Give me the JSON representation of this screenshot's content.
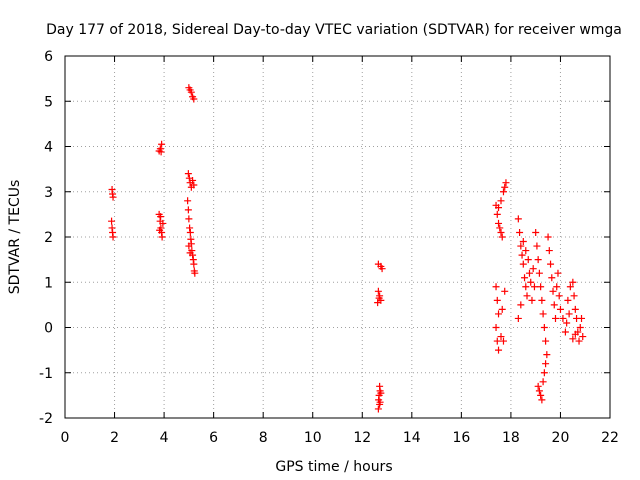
{
  "chart_data": {
    "type": "scatter",
    "title": "Day 177 of 2018, Sidereal Day-to-day VTEC variation (SDTVAR) for receiver wmga",
    "xlabel": "GPS time / hours",
    "ylabel": "SDTVAR / TECUs",
    "xlim": [
      0,
      22
    ],
    "ylim": [
      -2,
      6
    ],
    "xticks": [
      0,
      2,
      4,
      6,
      8,
      10,
      12,
      14,
      16,
      18,
      20,
      22
    ],
    "yticks": [
      -2,
      -1,
      0,
      1,
      2,
      3,
      4,
      5,
      6
    ],
    "xtick_labels": [
      "0",
      "2",
      "4",
      "6",
      "8",
      "10",
      "12",
      "14",
      "16",
      "18",
      "20",
      "22"
    ],
    "ytick_labels": [
      "-2",
      "-1",
      "0",
      "1",
      "2",
      "3",
      "4",
      "5",
      "6"
    ],
    "grid": true,
    "marker": "+",
    "marker_color": "#ff0000",
    "series": [
      {
        "name": "SDTVAR",
        "points": [
          [
            1.9,
            3.05
          ],
          [
            1.92,
            2.95
          ],
          [
            1.94,
            2.88
          ],
          [
            1.88,
            2.35
          ],
          [
            1.9,
            2.2
          ],
          [
            1.92,
            2.1
          ],
          [
            1.94,
            2.0
          ],
          [
            3.8,
            3.9
          ],
          [
            3.85,
            3.95
          ],
          [
            3.9,
            4.05
          ],
          [
            3.88,
            3.88
          ],
          [
            3.8,
            2.5
          ],
          [
            3.84,
            2.35
          ],
          [
            3.87,
            2.2
          ],
          [
            3.9,
            2.1
          ],
          [
            3.92,
            2.0
          ],
          [
            3.95,
            2.3
          ],
          [
            3.82,
            2.15
          ],
          [
            3.86,
            2.45
          ],
          [
            5.0,
            5.3
          ],
          [
            5.05,
            5.25
          ],
          [
            5.1,
            5.2
          ],
          [
            5.15,
            5.1
          ],
          [
            5.2,
            5.05
          ],
          [
            4.98,
            3.4
          ],
          [
            5.02,
            3.3
          ],
          [
            5.05,
            3.2
          ],
          [
            5.1,
            3.1
          ],
          [
            5.15,
            3.25
          ],
          [
            5.2,
            3.15
          ],
          [
            4.95,
            2.8
          ],
          [
            4.98,
            2.6
          ],
          [
            5.0,
            2.4
          ],
          [
            5.03,
            2.2
          ],
          [
            5.06,
            2.1
          ],
          [
            5.08,
            1.95
          ],
          [
            5.1,
            1.85
          ],
          [
            5.12,
            1.7
          ],
          [
            5.15,
            1.6
          ],
          [
            5.18,
            1.5
          ],
          [
            5.2,
            1.4
          ],
          [
            5.22,
            1.25
          ],
          [
            5.24,
            1.2
          ],
          [
            5.0,
            1.8
          ],
          [
            5.05,
            1.65
          ],
          [
            12.65,
            1.4
          ],
          [
            12.75,
            1.35
          ],
          [
            12.8,
            1.3
          ],
          [
            12.65,
            0.8
          ],
          [
            12.7,
            0.7
          ],
          [
            12.75,
            0.6
          ],
          [
            12.62,
            0.55
          ],
          [
            12.68,
            0.65
          ],
          [
            12.7,
            -1.3
          ],
          [
            12.72,
            -1.4
          ],
          [
            12.68,
            -1.5
          ],
          [
            12.66,
            -1.6
          ],
          [
            12.7,
            -1.7
          ],
          [
            12.65,
            -1.8
          ],
          [
            12.75,
            -1.45
          ],
          [
            12.72,
            -1.65
          ],
          [
            17.4,
            2.7
          ],
          [
            17.45,
            2.5
          ],
          [
            17.5,
            2.3
          ],
          [
            17.55,
            2.2
          ],
          [
            17.6,
            2.1
          ],
          [
            17.65,
            2.0
          ],
          [
            17.7,
            3.0
          ],
          [
            17.75,
            3.1
          ],
          [
            17.8,
            3.2
          ],
          [
            17.6,
            2.8
          ],
          [
            17.5,
            2.65
          ],
          [
            17.4,
            0.9
          ],
          [
            17.45,
            0.6
          ],
          [
            17.5,
            0.3
          ],
          [
            17.4,
            0.0
          ],
          [
            17.45,
            -0.3
          ],
          [
            17.5,
            -0.5
          ],
          [
            17.6,
            -0.2
          ],
          [
            17.7,
            -0.3
          ],
          [
            17.75,
            0.8
          ],
          [
            17.65,
            0.4
          ],
          [
            18.3,
            2.4
          ],
          [
            18.35,
            2.1
          ],
          [
            18.4,
            1.8
          ],
          [
            18.45,
            1.6
          ],
          [
            18.5,
            1.4
          ],
          [
            18.55,
            1.1
          ],
          [
            18.6,
            0.9
          ],
          [
            18.65,
            0.7
          ],
          [
            18.7,
            1.5
          ],
          [
            18.75,
            1.2
          ],
          [
            18.8,
            1.0
          ],
          [
            18.85,
            0.6
          ],
          [
            18.3,
            0.2
          ],
          [
            18.4,
            0.5
          ],
          [
            18.5,
            1.9
          ],
          [
            18.6,
            1.7
          ],
          [
            18.9,
            1.3
          ],
          [
            18.95,
            0.9
          ],
          [
            19.0,
            2.1
          ],
          [
            19.05,
            1.8
          ],
          [
            19.1,
            1.5
          ],
          [
            19.15,
            1.2
          ],
          [
            19.2,
            0.9
          ],
          [
            19.25,
            0.6
          ],
          [
            19.3,
            0.3
          ],
          [
            19.35,
            0.0
          ],
          [
            19.4,
            -0.3
          ],
          [
            19.45,
            -0.6
          ],
          [
            19.5,
            2.0
          ],
          [
            19.55,
            1.7
          ],
          [
            19.6,
            1.4
          ],
          [
            19.65,
            1.1
          ],
          [
            19.7,
            0.8
          ],
          [
            19.75,
            0.5
          ],
          [
            19.8,
            0.2
          ],
          [
            19.85,
            0.9
          ],
          [
            19.9,
            1.2
          ],
          [
            19.95,
            0.7
          ],
          [
            19.1,
            -1.3
          ],
          [
            19.15,
            -1.4
          ],
          [
            19.2,
            -1.5
          ],
          [
            19.25,
            -1.6
          ],
          [
            19.3,
            -1.2
          ],
          [
            19.35,
            -1.0
          ],
          [
            19.4,
            -0.8
          ],
          [
            20.0,
            0.4
          ],
          [
            20.1,
            0.2
          ],
          [
            20.2,
            -0.1
          ],
          [
            20.3,
            0.6
          ],
          [
            20.4,
            0.9
          ],
          [
            20.5,
            1.0
          ],
          [
            20.55,
            0.7
          ],
          [
            20.6,
            0.4
          ],
          [
            20.65,
            0.2
          ],
          [
            20.7,
            -0.1
          ],
          [
            20.75,
            -0.3
          ],
          [
            20.8,
            0.0
          ],
          [
            20.85,
            0.2
          ],
          [
            20.9,
            -0.2
          ],
          [
            20.5,
            -0.25
          ],
          [
            20.6,
            -0.15
          ],
          [
            20.35,
            0.3
          ],
          [
            20.25,
            0.1
          ]
        ]
      }
    ]
  }
}
